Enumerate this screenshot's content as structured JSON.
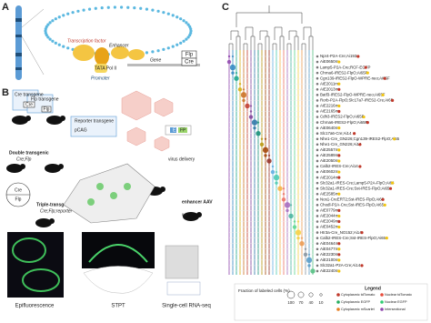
{
  "panel_a": {
    "label": "A",
    "transcription_factor": "Transcription factor",
    "enhancer": "Enhancer",
    "promoter": "Promoter",
    "gene": "Gene",
    "pol": "TATA Pol II",
    "flp": "Flp",
    "cre": "Cre"
  },
  "panel_b": {
    "label": "B",
    "cre_transgene": "Cre transgene",
    "flp_transgene": "Flp transgene",
    "cre": "Cre",
    "flp": "Flp",
    "reporter_transgene": "Reporter transgene",
    "pcag": "pCAG",
    "double": "Double transgenic",
    "double_sub": "Cre;Flp",
    "triple": "Triple-transgenic",
    "triple_sub": "Cre;Flp;reporter",
    "virus": "virus delivery",
    "enhancer_aav": "enhancer AAV",
    "wt": "wt",
    "e": "E",
    "fp": "FP",
    "epi": "Epifluorescence",
    "stpt": "STPT",
    "rnaseq": "Single-cell RNA-seq"
  },
  "panel_c": {
    "label": "C",
    "lines": [
      "Npr4-P2A-Cre;Ai193",
      "AiE0650m",
      "Lamp5-P2A-Cre;RCF-EGFP",
      "Chrna6-IRES2-FlpO;Ai65F",
      "Cgn139-IRES2-FlpO-WPRE-neo;Ai65F",
      "AiE2011m",
      "AiE2013m",
      "Batf3-IRES2-FlpO-WPRE-neo;Ai65F",
      "Rorb-P2A-FlpO;Slc17a7-IRES2-Cre;Ai65",
      "AiE2216m",
      "AiE2165m",
      "Cdh3-IRES2-FlpO;Ai65F",
      "Chrna6-IRES2-FlpO;Ai65F",
      "AiE0640m",
      "Slc17a6-Cre;Ai14",
      "Nhe1-Cre_GN226;Cgn139-IRES2-FlpO;Ai65",
      "Nhe1-Cre_GN226;Ai14",
      "AiE2557m",
      "AiE2589m",
      "AiE2050m",
      "Calb2-IRES-Cre;Ai14",
      "AiE0602m",
      "AiE2014m",
      "Slc32a1-IRES-Cre;Lamp5-P2A-FlpO;Ai65",
      "Slc32a1-IRES-Cre;Sst-IRES-FlpO;Ai65",
      "AiE2585m",
      "Nos1-CreERT2;Sst-IRES-FlpO;Ai65",
      "Chodl-P2A-Cre;Sst-IRES-FlpO;Ai65",
      "AiE0779m",
      "AiE2044m",
      "AiE2049m",
      "AiE0452m",
      "Htr3a-Cre_NO152;Ai14",
      "Calb2-IRES-Cre;Sst-IRES-FlpO;Ai65",
      "AiE0464m",
      "AiE0477m",
      "AiE2230m",
      "AiE2100m",
      "Slc32a1-P2A-Cre;Ai14",
      "AiE2240m"
    ],
    "size_legend_title": "Fraction of labeled cells (%)",
    "size_legend_ticks": [
      "100",
      "70",
      "40",
      "10"
    ],
    "legend_title": "Legend",
    "legend_items": [
      "Cytoplasmic tdTomato",
      "Nuclear tdTomato",
      "Cytoplasmic EGFP",
      "Nuclear EGFP",
      "Cytoplasmic mScarlet",
      "Intersectional"
    ]
  }
}
